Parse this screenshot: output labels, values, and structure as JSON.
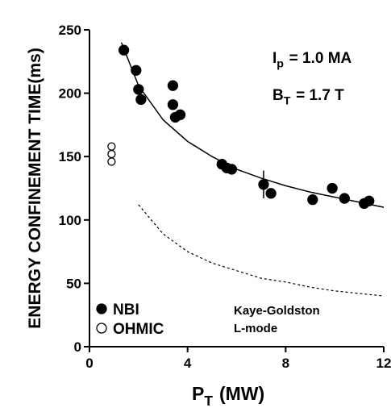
{
  "chart_data": {
    "type": "scatter",
    "y_label": "ENERGY CONFINEMENT TIME(ms)",
    "x_label": [
      "P",
      "T",
      "(MW)"
    ],
    "annotations": [
      [
        "I",
        "p",
        "= 1.0 MA"
      ],
      [
        "B",
        "T",
        "= 1.7 T"
      ]
    ],
    "xlim": [
      0,
      12
    ],
    "xticks": [
      0,
      4,
      8,
      12
    ],
    "ylim": [
      0,
      250
    ],
    "yticks": [
      0,
      50,
      100,
      150,
      200,
      250
    ],
    "series": [
      {
        "name": "NBI",
        "marker": "filled",
        "color": "#000000",
        "x": [
          1.4,
          1.9,
          2.0,
          2.1,
          3.4,
          3.4,
          3.5,
          3.7,
          5.4,
          5.6,
          5.8,
          7.1,
          7.4,
          9.1,
          9.9,
          10.4,
          11.2,
          11.4
        ],
        "values": [
          234,
          218,
          203,
          195,
          206,
          191,
          181,
          183,
          144,
          141,
          140,
          128,
          121,
          116,
          125,
          117,
          113,
          115
        ]
      },
      {
        "name": "OHMIC",
        "marker": "open",
        "color": "#000000",
        "x": [
          0.9,
          0.9,
          0.9
        ],
        "values": [
          158,
          152,
          146
        ]
      }
    ],
    "error_bar": {
      "x": 7.1,
      "value": 128,
      "error": 11
    },
    "curves": [
      {
        "style": "solid",
        "color": "#000000",
        "x": [
          1.3,
          2,
          3,
          4,
          5,
          6,
          7,
          8,
          9,
          10,
          11,
          12
        ],
        "values": [
          240,
          206,
          179,
          162,
          150,
          140,
          133,
          127,
          122,
          118,
          114,
          110
        ]
      },
      {
        "style": "dashed",
        "color": "#000000",
        "label": [
          "Kaye-Goldston",
          "L-mode"
        ],
        "x": [
          2,
          3,
          4,
          5,
          6,
          7,
          8,
          9,
          10,
          11,
          12
        ],
        "values": [
          112,
          89,
          75,
          66,
          60,
          54,
          51,
          47,
          44,
          42,
          40
        ]
      }
    ]
  }
}
